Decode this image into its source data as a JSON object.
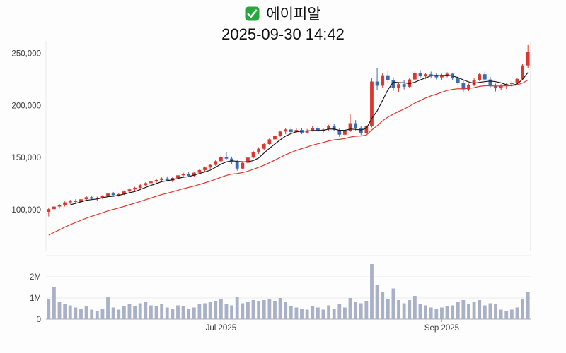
{
  "header": {
    "title": "에이피알",
    "datetime": "2025-09-30 14:42"
  },
  "colors": {
    "up": "#d8382f",
    "down": "#3a6ab8",
    "ma_fast": "#1a1a1a",
    "ma_slow": "#e0362c",
    "volume_bar": "#a9b1c7",
    "axis_text": "#3c3c3c",
    "grid": "#ececec",
    "border": "#dddddd",
    "baseline": "#aaaaaa",
    "check_green": "#27a83d",
    "background": "#fdfdfd"
  },
  "chart_data": {
    "type": "candlestick+volume",
    "title": "에이피알",
    "datetime": "2025-09-30 14:42",
    "legend": "none",
    "grid": "minimal",
    "y_axis": {
      "min": 60000,
      "max": 262000,
      "ticks": [
        {
          "value": 100000,
          "label": "100,000"
        },
        {
          "value": 150000,
          "label": "150,000"
        },
        {
          "value": 200000,
          "label": "200,000"
        },
        {
          "value": 250000,
          "label": "250,000"
        }
      ]
    },
    "volume_axis": {
      "max": 2800000,
      "ticks": [
        {
          "value": 0,
          "label": "0"
        },
        {
          "value": 1000000,
          "label": "1M"
        },
        {
          "value": 2000000,
          "label": "2M"
        }
      ]
    },
    "x_axis": {
      "ticks": [
        {
          "index": 32,
          "label": "Jul 2025"
        },
        {
          "index": 73,
          "label": "Sep 2025"
        }
      ]
    },
    "ma": {
      "fast_period": 5,
      "slow_period": 20,
      "slow_seed": 73000
    },
    "candles": [
      [
        98000,
        101500,
        93500,
        100500,
        950000
      ],
      [
        100500,
        104000,
        99000,
        103000,
        1500000
      ],
      [
        103000,
        105500,
        101000,
        104500,
        800000
      ],
      [
        104500,
        108000,
        103000,
        107000,
        700000
      ],
      [
        107000,
        109500,
        105500,
        108500,
        650000
      ],
      [
        108500,
        110000,
        106000,
        107500,
        550000
      ],
      [
        107500,
        111000,
        106500,
        110000,
        500000
      ],
      [
        110000,
        113000,
        109000,
        112000,
        600000
      ],
      [
        112000,
        113500,
        109500,
        110500,
        450000
      ],
      [
        110500,
        112500,
        108500,
        111500,
        400000
      ],
      [
        111500,
        114000,
        110000,
        113000,
        500000
      ],
      [
        113000,
        116500,
        112000,
        115500,
        1050000
      ],
      [
        115500,
        117000,
        113000,
        114000,
        550000
      ],
      [
        114000,
        116000,
        112500,
        115000,
        450000
      ],
      [
        115000,
        118500,
        114000,
        117500,
        600000
      ],
      [
        117500,
        120500,
        116500,
        119500,
        700000
      ],
      [
        119500,
        122000,
        118000,
        121000,
        600000
      ],
      [
        121000,
        124500,
        120000,
        123500,
        750000
      ],
      [
        123500,
        126500,
        122500,
        125500,
        800000
      ],
      [
        125500,
        128000,
        124000,
        127000,
        650000
      ],
      [
        127000,
        129500,
        125000,
        128500,
        600000
      ],
      [
        128500,
        131000,
        126500,
        130000,
        700000
      ],
      [
        130000,
        132000,
        127000,
        128000,
        550000
      ],
      [
        128000,
        131500,
        126500,
        130500,
        500000
      ],
      [
        130500,
        134000,
        129500,
        133000,
        650000
      ],
      [
        133000,
        135500,
        131000,
        134500,
        600000
      ],
      [
        134500,
        136000,
        131500,
        132500,
        500000
      ],
      [
        132500,
        136500,
        131500,
        135500,
        550000
      ],
      [
        135500,
        139000,
        134000,
        138000,
        700000
      ],
      [
        138000,
        141500,
        136500,
        140500,
        750000
      ],
      [
        140500,
        144000,
        139000,
        143000,
        800000
      ],
      [
        143000,
        147500,
        142000,
        146500,
        850000
      ],
      [
        146500,
        152000,
        145000,
        150500,
        950000
      ],
      [
        150500,
        155000,
        148000,
        149000,
        700000
      ],
      [
        149000,
        151000,
        144000,
        146000,
        650000
      ],
      [
        146000,
        148000,
        137500,
        139500,
        1050000
      ],
      [
        139500,
        146000,
        138500,
        145000,
        750000
      ],
      [
        145000,
        151000,
        144000,
        150000,
        800000
      ],
      [
        150000,
        156500,
        149000,
        155500,
        900000
      ],
      [
        155500,
        160000,
        153500,
        158500,
        850000
      ],
      [
        158500,
        164000,
        157000,
        163000,
        900000
      ],
      [
        163000,
        168500,
        162000,
        167500,
        950000
      ],
      [
        167500,
        172000,
        165500,
        171000,
        850000
      ],
      [
        171000,
        176000,
        170000,
        175000,
        1000000
      ],
      [
        175000,
        178500,
        172500,
        177000,
        800000
      ],
      [
        177000,
        179000,
        173000,
        174500,
        600000
      ],
      [
        174500,
        178000,
        173500,
        176500,
        550000
      ],
      [
        176500,
        178500,
        172500,
        174000,
        500000
      ],
      [
        174000,
        177500,
        173000,
        176000,
        450000
      ],
      [
        176000,
        180000,
        175000,
        178500,
        600000
      ],
      [
        178500,
        180500,
        174500,
        175500,
        550000
      ],
      [
        175500,
        178000,
        174000,
        177000,
        450000
      ],
      [
        177000,
        181500,
        176000,
        180000,
        650000
      ],
      [
        180000,
        182000,
        175500,
        176500,
        500000
      ],
      [
        176500,
        178500,
        170000,
        172000,
        700000
      ],
      [
        172000,
        176500,
        171000,
        175500,
        550000
      ],
      [
        175500,
        192000,
        174500,
        183000,
        1000000
      ],
      [
        183000,
        186000,
        176000,
        178500,
        800000
      ],
      [
        178500,
        180000,
        171500,
        173500,
        750000
      ],
      [
        173500,
        181000,
        172500,
        180000,
        850000
      ],
      [
        180000,
        226000,
        179000,
        223000,
        2600000
      ],
      [
        223000,
        236000,
        215000,
        219000,
        1600000
      ],
      [
        219000,
        231000,
        217000,
        229000,
        1300000
      ],
      [
        229000,
        233000,
        222000,
        224500,
        950000
      ],
      [
        224500,
        227000,
        214000,
        217000,
        1450000
      ],
      [
        217000,
        222500,
        212500,
        220500,
        900000
      ],
      [
        220500,
        224000,
        215500,
        218000,
        750000
      ],
      [
        218000,
        226500,
        217000,
        225000,
        900000
      ],
      [
        225000,
        233500,
        224000,
        231500,
        1100000
      ],
      [
        231500,
        234000,
        226000,
        228000,
        700000
      ],
      [
        228000,
        231500,
        225500,
        230000,
        650000
      ],
      [
        230000,
        232500,
        226500,
        228500,
        550000
      ],
      [
        228500,
        231000,
        225000,
        227000,
        500000
      ],
      [
        227000,
        230500,
        224500,
        229500,
        550000
      ],
      [
        229500,
        232000,
        227000,
        230500,
        600000
      ],
      [
        230500,
        231500,
        224000,
        226000,
        650000
      ],
      [
        226000,
        228000,
        219500,
        221500,
        800000
      ],
      [
        221500,
        224000,
        212500,
        215500,
        900000
      ],
      [
        215500,
        221000,
        214000,
        219500,
        700000
      ],
      [
        219500,
        226000,
        218500,
        224500,
        800000
      ],
      [
        224500,
        231500,
        223500,
        230000,
        900000
      ],
      [
        230000,
        232500,
        223000,
        225000,
        650000
      ],
      [
        225000,
        227500,
        216500,
        218500,
        750000
      ],
      [
        218500,
        221000,
        213500,
        216500,
        700000
      ],
      [
        216500,
        220500,
        215000,
        219000,
        450000
      ],
      [
        219000,
        222000,
        216000,
        220500,
        400000
      ],
      [
        220500,
        223500,
        218000,
        222000,
        450000
      ],
      [
        222000,
        226500,
        221000,
        225500,
        550000
      ],
      [
        225500,
        240000,
        224500,
        238500,
        950000
      ],
      [
        238500,
        258000,
        236000,
        251500,
        1300000
      ]
    ]
  }
}
